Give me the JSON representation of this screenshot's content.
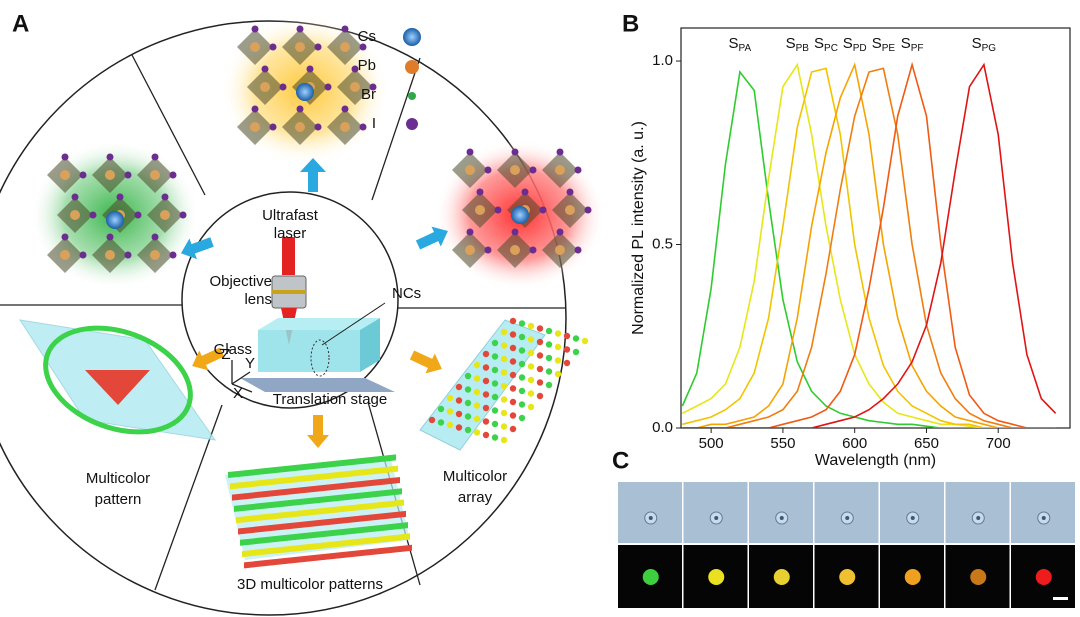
{
  "panels": {
    "a": {
      "label": "A",
      "atoms": [
        "Cs",
        "Pb",
        "Br",
        "I"
      ],
      "laser": [
        "Ultrafast",
        "laser"
      ],
      "objective": [
        "Objective",
        "lens"
      ],
      "ncs": "NCs",
      "glass": "Glass",
      "axes": [
        "Z",
        "Y",
        "X"
      ],
      "stage": "Translation stage",
      "pattern": [
        "Multicolor",
        "pattern"
      ],
      "patterns3d": "3D multicolor  patterns",
      "array": [
        "Multicolor",
        "array"
      ]
    },
    "b": {
      "label": "B"
    },
    "c": {
      "label": "C"
    }
  },
  "chart_data": {
    "type": "line",
    "xlabel": "Wavelength (nm)",
    "ylabel": "Normalized PL intensity (a. u.)",
    "x": [
      480,
      490,
      500,
      510,
      520,
      530,
      540,
      550,
      560,
      570,
      580,
      590,
      600,
      610,
      620,
      630,
      640,
      650,
      660,
      670,
      680,
      690,
      700,
      710,
      720,
      730,
      740
    ],
    "xlim": [
      479,
      750
    ],
    "xticks": [
      500,
      550,
      600,
      650,
      700
    ],
    "ylim": [
      0,
      1.09
    ],
    "yticks": [
      {
        "value": 0,
        "label": "0.0"
      },
      {
        "value": 0.5,
        "label": "0.5"
      },
      {
        "value": 1,
        "label": "1.0"
      }
    ],
    "series": [
      {
        "name": "SPA",
        "color": "#2ecc2e",
        "values": [
          0.06,
          0.15,
          0.38,
          0.72,
          0.97,
          0.92,
          0.62,
          0.35,
          0.18,
          0.1,
          0.06,
          0.04,
          0.03,
          0.02,
          0.015,
          0.01,
          0.01,
          0.005,
          0,
          0,
          0,
          0,
          0,
          0,
          0,
          0,
          0
        ]
      },
      {
        "name": "SPB",
        "color": "#e6e619",
        "values": [
          0.04,
          0.06,
          0.08,
          0.12,
          0.22,
          0.4,
          0.68,
          0.93,
          0.99,
          0.8,
          0.55,
          0.35,
          0.2,
          0.12,
          0.07,
          0.04,
          0.03,
          0.02,
          0.01,
          0.01,
          0.005,
          0,
          0,
          0,
          0,
          0,
          0
        ]
      },
      {
        "name": "SPC",
        "color": "#f2c400",
        "values": [
          0.01,
          0.02,
          0.03,
          0.05,
          0.08,
          0.15,
          0.3,
          0.55,
          0.82,
          0.97,
          0.98,
          0.8,
          0.5,
          0.3,
          0.17,
          0.1,
          0.06,
          0.04,
          0.02,
          0.01,
          0.01,
          0,
          0,
          0,
          0,
          0,
          0
        ]
      },
      {
        "name": "SPD",
        "color": "#f5a300",
        "values": [
          0,
          0,
          0.01,
          0.01,
          0.02,
          0.03,
          0.06,
          0.12,
          0.3,
          0.55,
          0.75,
          0.9,
          0.99,
          0.8,
          0.5,
          0.3,
          0.17,
          0.1,
          0.06,
          0.03,
          0.02,
          0.01,
          0,
          0,
          0,
          0,
          0
        ]
      },
      {
        "name": "SPE",
        "color": "#f07d10",
        "values": [
          0,
          0,
          0,
          0,
          0.01,
          0.02,
          0.03,
          0.05,
          0.1,
          0.22,
          0.42,
          0.65,
          0.85,
          0.97,
          0.98,
          0.8,
          0.5,
          0.28,
          0.15,
          0.08,
          0.04,
          0.02,
          0.01,
          0,
          0,
          0,
          0
        ]
      },
      {
        "name": "SPF",
        "color": "#f05a14",
        "values": [
          0,
          0,
          0,
          0,
          0,
          0,
          0,
          0.01,
          0.02,
          0.03,
          0.05,
          0.1,
          0.2,
          0.38,
          0.6,
          0.85,
          0.99,
          0.85,
          0.5,
          0.22,
          0.09,
          0.04,
          0.02,
          0.01,
          0,
          0,
          0
        ]
      },
      {
        "name": "SPG",
        "color": "#e01414",
        "values": [
          0,
          0,
          0,
          0,
          0,
          0,
          0,
          0,
          0,
          0,
          0.01,
          0.02,
          0.03,
          0.05,
          0.08,
          0.12,
          0.18,
          0.28,
          0.45,
          0.7,
          0.93,
          0.99,
          0.8,
          0.45,
          0.2,
          0.08,
          0.04
        ]
      }
    ]
  }
}
